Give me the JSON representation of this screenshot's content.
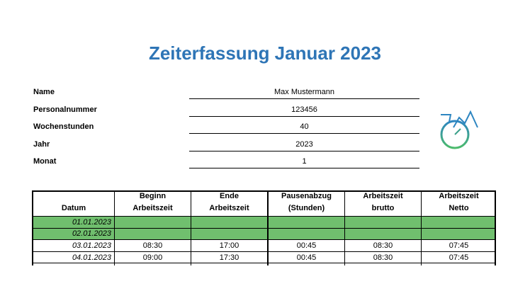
{
  "header": {
    "title": "Zeiterfassung Januar 2023"
  },
  "info": [
    {
      "label": "Name",
      "value": "Max Mustermann"
    },
    {
      "label": "Personalnummer",
      "value": "123456"
    },
    {
      "label": "Wochenstunden",
      "value": "40"
    },
    {
      "label": "Jahr",
      "value": "2023"
    },
    {
      "label": "Monat",
      "value": "1"
    }
  ],
  "table": {
    "headers": [
      [
        "Datum"
      ],
      [
        "Beginn",
        "Arbeitszeit"
      ],
      [
        "Ende",
        "Arbeitszeit"
      ],
      [
        "Pausenabzug",
        "(Stunden)"
      ],
      [
        "Arbeitszeit",
        "brutto"
      ],
      [
        "Arbeitszeit",
        "Netto"
      ]
    ],
    "rows": [
      [
        "01.01.2023",
        "",
        "",
        "",
        "",
        ""
      ],
      [
        "02.01.2023",
        "",
        "",
        "",
        "",
        ""
      ],
      [
        "03.01.2023",
        "08:30",
        "17:00",
        "00:45",
        "08:30",
        "07:45"
      ],
      [
        "04.01.2023",
        "09:00",
        "17:30",
        "00:45",
        "08:30",
        "07:45"
      ]
    ],
    "highlighted_rows": [
      0,
      1
    ]
  }
}
